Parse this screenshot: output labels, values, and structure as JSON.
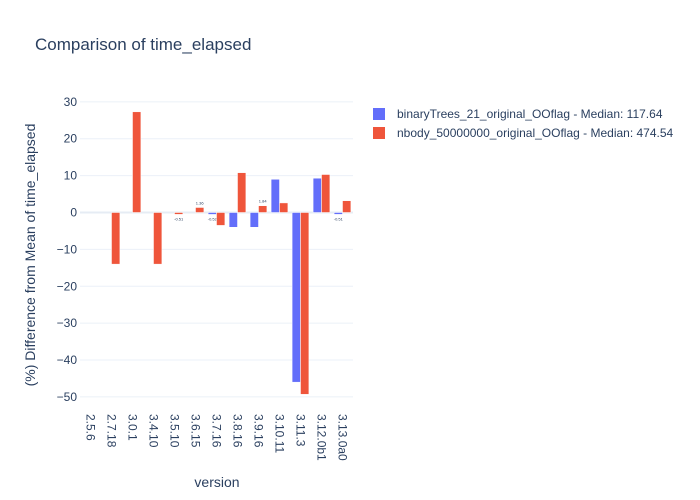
{
  "chart_data": {
    "type": "bar",
    "title": "Comparison of time_elapsed",
    "xlabel": "version",
    "ylabel": "(%) Difference from Mean of time_elapsed",
    "ylim": [
      -53,
      30.5
    ],
    "yticks": [
      30,
      20,
      10,
      0,
      -10,
      -20,
      -30,
      -40,
      -50
    ],
    "ytick_labels": [
      "30",
      "20",
      "10",
      "0",
      "−10",
      "−20",
      "−30",
      "−40",
      "−50"
    ],
    "grid": true,
    "legend_position": "top-right",
    "categories": [
      "2.5.6",
      "2.7.18",
      "3.0.1",
      "3.4.10",
      "3.5.10",
      "3.6.15",
      "3.7.16",
      "3.8.16",
      "3.9.16",
      "3.10.11",
      "3.11.3",
      "3.12.0b1",
      "3.13.0a0"
    ],
    "series": [
      {
        "name": "binaryTrees_21_original_OOflag - Median: 117.64",
        "color": "#636efa",
        "values": [
          null,
          null,
          null,
          null,
          null,
          null,
          -0.52,
          -4.0,
          -4.0,
          9.0,
          -46.0,
          9.3,
          -0.51
        ],
        "labels": [
          "",
          "",
          "",
          "",
          "",
          "",
          "-0.52",
          "",
          "",
          "",
          "",
          "",
          "-0.51"
        ]
      },
      {
        "name": "nbody_50000000_original_OOflag - Median: 474.54",
        "color": "#ef553b",
        "values": [
          null,
          -14.0,
          27.3,
          -14.0,
          -0.51,
          1.36,
          -3.5,
          10.8,
          1.84,
          2.6,
          -49.3,
          10.3,
          3.2
        ],
        "labels": [
          "",
          "",
          "",
          "",
          "-0.51",
          "1.36",
          "",
          "",
          "1.84",
          "",
          "",
          "",
          ""
        ]
      }
    ]
  }
}
